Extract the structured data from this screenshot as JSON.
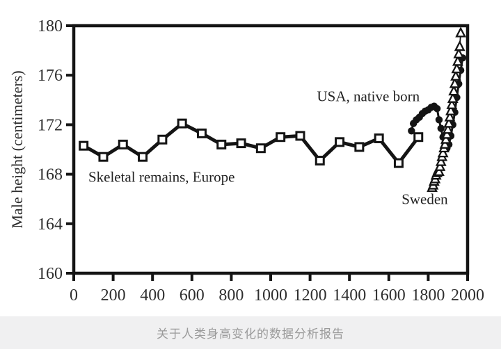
{
  "page": {
    "caption": "关于人类身高变化的数据分析报告",
    "background": "#ffffff",
    "caption_bg": "#f0f0f1",
    "caption_color": "#9a9a9a"
  },
  "chart_data": {
    "type": "line",
    "title": "",
    "xlabel": "",
    "ylabel": "Male height (centimeters)",
    "xlim": [
      0,
      2000
    ],
    "ylim": [
      160,
      180
    ],
    "x_ticks": [
      0,
      200,
      400,
      600,
      800,
      1000,
      1200,
      1400,
      1600,
      1800,
      2000
    ],
    "y_ticks": [
      160,
      164,
      168,
      172,
      176,
      180
    ],
    "grid": false,
    "legend_position": "inline-annotations",
    "axis_color": "#141414",
    "series": [
      {
        "name": "Skeletal remains, Europe",
        "marker": "square-open",
        "color": "#141414",
        "line_width": 5,
        "x": [
          50,
          150,
          250,
          350,
          450,
          550,
          650,
          750,
          850,
          950,
          1050,
          1150,
          1250,
          1350,
          1450,
          1550,
          1650,
          1750
        ],
        "y": [
          170.3,
          169.4,
          170.4,
          169.4,
          170.8,
          172.1,
          171.3,
          170.4,
          170.5,
          170.1,
          171.0,
          171.1,
          169.1,
          170.6,
          170.2,
          170.9,
          168.9,
          171.0
        ],
        "annotation": {
          "text": "Skeletal remains, Europe",
          "x": 74,
          "y": 167.4,
          "anchor": "start"
        }
      },
      {
        "name": "USA, native born",
        "marker": "circle-filled",
        "color": "#141414",
        "line_width": 3,
        "x": [
          1715,
          1725,
          1740,
          1755,
          1770,
          1785,
          1800,
          1815,
          1830,
          1845,
          1855,
          1865,
          1875,
          1885,
          1895,
          1905,
          1915,
          1925,
          1935,
          1945,
          1955,
          1965,
          1975
        ],
        "y": [
          171.5,
          172.1,
          172.4,
          172.6,
          172.9,
          173.1,
          173.2,
          173.4,
          173.5,
          173.3,
          172.4,
          171.7,
          171.0,
          170.5,
          170.1,
          170.4,
          171.1,
          172.0,
          173.0,
          174.2,
          175.3,
          176.4,
          177.4
        ],
        "annotation": {
          "text": "USA, native born",
          "x": 1235,
          "y": 173.9,
          "anchor": "start"
        }
      },
      {
        "name": "Sweden",
        "marker": "triangle-open",
        "color": "#141414",
        "line_width": 1.8,
        "x": [
          1820,
          1825,
          1830,
          1835,
          1840,
          1845,
          1850,
          1855,
          1860,
          1865,
          1870,
          1875,
          1880,
          1885,
          1890,
          1895,
          1900,
          1905,
          1910,
          1915,
          1920,
          1925,
          1930,
          1935,
          1940,
          1945,
          1950,
          1955,
          1960,
          1965
        ],
        "y": [
          166.9,
          167.1,
          167.4,
          167.6,
          167.9,
          168.1,
          168.3,
          168.2,
          168.6,
          169.0,
          169.4,
          169.7,
          170.1,
          170.4,
          170.8,
          171.2,
          171.6,
          172.1,
          172.6,
          173.1,
          173.6,
          174.1,
          174.7,
          175.3,
          175.9,
          176.5,
          177.1,
          177.7,
          178.3,
          179.4
        ],
        "annotation": {
          "text": "Sweden",
          "x": 1665,
          "y": 165.6,
          "anchor": "start"
        }
      }
    ]
  }
}
